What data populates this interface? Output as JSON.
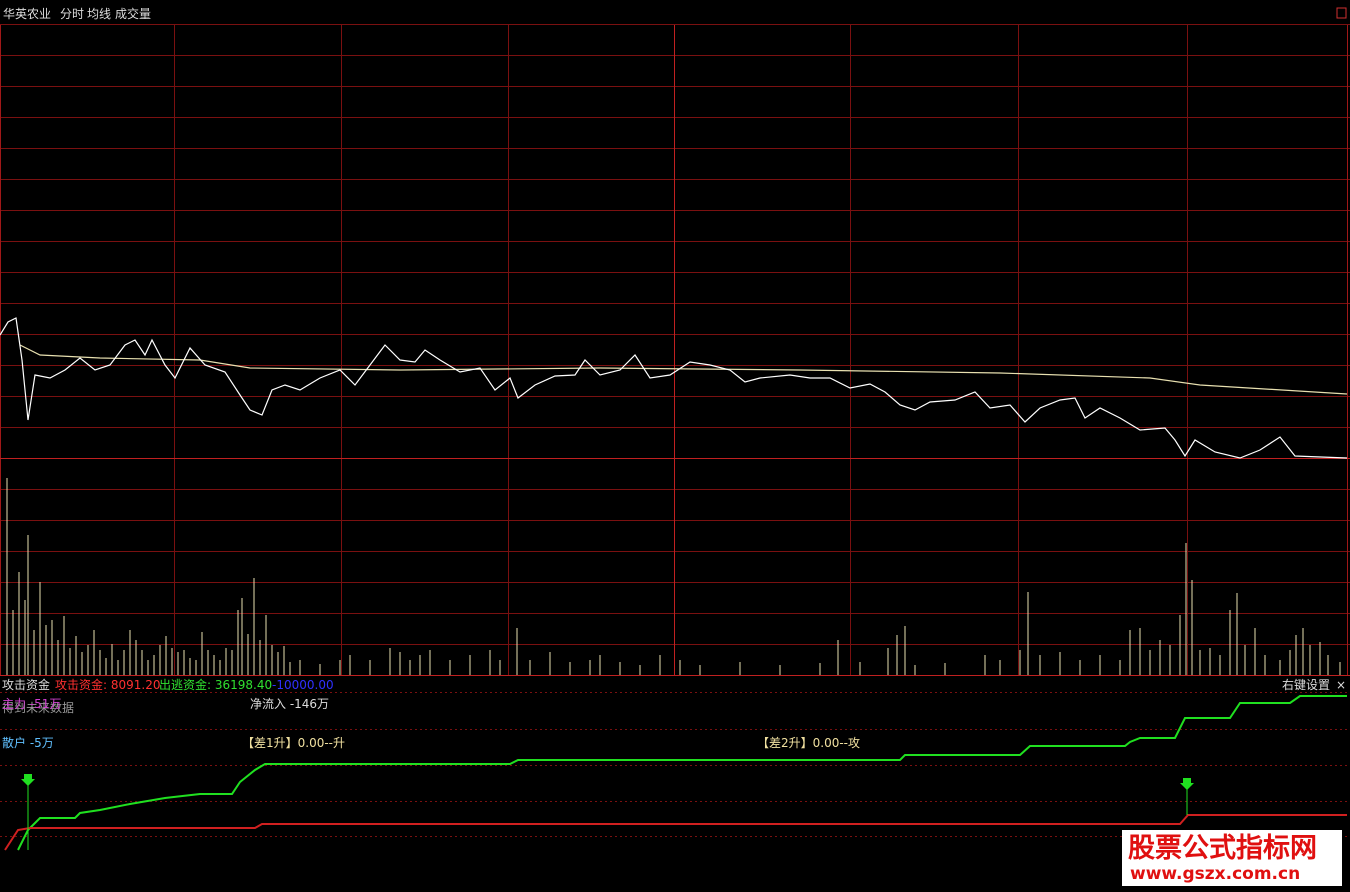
{
  "header": {
    "stock": "华英农业",
    "menu": [
      "分时",
      "均线",
      "成交量"
    ]
  },
  "indicator": {
    "name": "攻击资金",
    "attack": "攻击资金: 8091.20",
    "escape": "出逃资金: 36198.40",
    "level": "-10000.00",
    "settings": "右键设置",
    "close": "×"
  },
  "labels": {
    "future": "得到未来数据",
    "main": "主力 -51万",
    "net_inflow": "净流入 -146万",
    "retail": "散户 -5万",
    "diff1": "【差1升】0.00--升",
    "diff2": "【差2升】0.00--攻"
  },
  "watermark": {
    "title": "股票公式指标网",
    "url": "www.gszx.com.cn"
  }
}
